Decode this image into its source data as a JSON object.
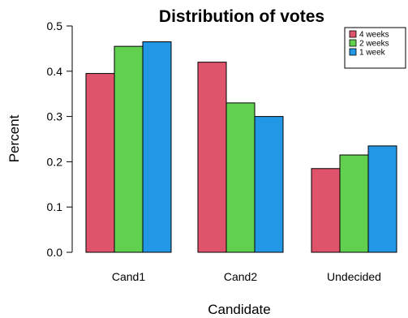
{
  "chart_data": {
    "type": "bar",
    "title": "Distribution of votes",
    "xlabel": "Candidate",
    "ylabel": "Percent",
    "categories": [
      "Cand1",
      "Cand2",
      "Undecided"
    ],
    "series": [
      {
        "name": "4 weeks",
        "color": "#DF536B",
        "values": [
          0.395,
          0.42,
          0.185
        ]
      },
      {
        "name": "2 weeks",
        "color": "#61D04F",
        "values": [
          0.455,
          0.33,
          0.215
        ]
      },
      {
        "name": "1 week",
        "color": "#2297E6",
        "values": [
          0.465,
          0.3,
          0.235
        ]
      }
    ],
    "ylim": [
      0,
      0.5
    ],
    "yticks": [
      "0.0",
      "0.1",
      "0.2",
      "0.3",
      "0.4",
      "0.5"
    ],
    "legend_position": "top-right",
    "grid": false
  }
}
